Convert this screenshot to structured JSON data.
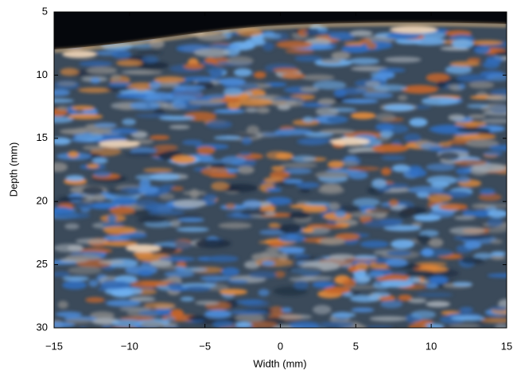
{
  "chart_data": {
    "type": "image",
    "xlabel": "Width (mm)",
    "ylabel": "Depth (mm)",
    "xlim": [
      -15,
      15
    ],
    "xticks": [
      {
        "value": -15,
        "label": "−15"
      },
      {
        "value": -10,
        "label": "−10"
      },
      {
        "value": -5,
        "label": "−5"
      },
      0,
      5,
      10,
      15
    ],
    "ylim": [
      5,
      30
    ],
    "yticks": [
      5,
      10,
      15,
      20,
      25,
      30
    ],
    "y_inverted": true
  }
}
